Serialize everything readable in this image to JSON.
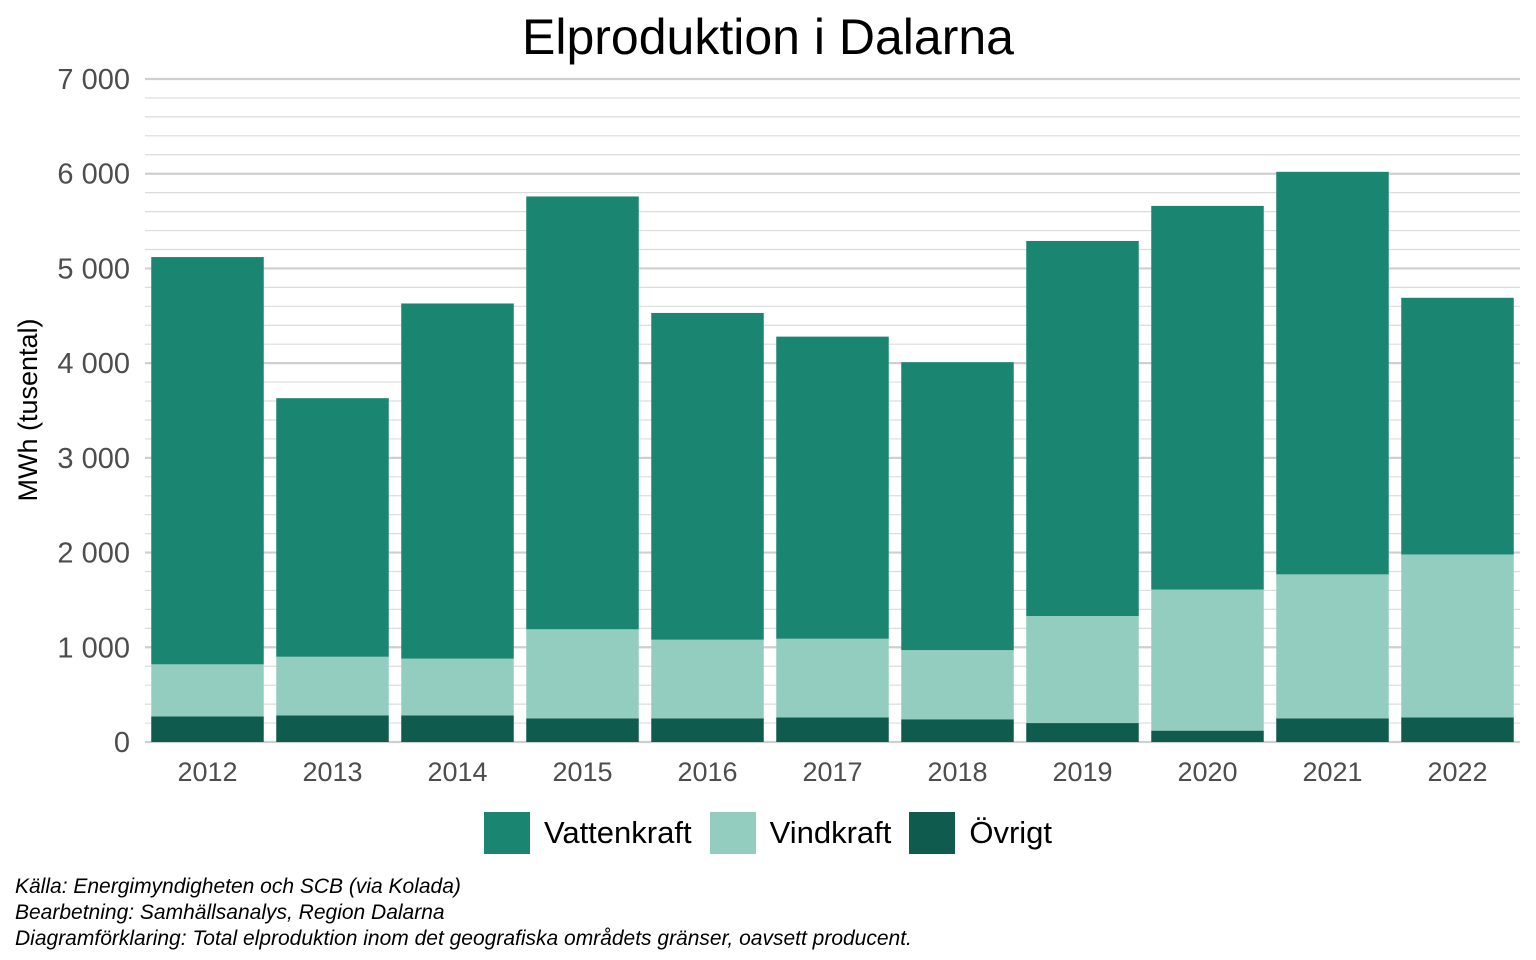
{
  "chart_data": {
    "type": "bar",
    "stacked": true,
    "title": "Elproduktion i Dalarna",
    "xlabel": "",
    "ylabel": "MWh (tusental)",
    "ylim": [
      0,
      7000
    ],
    "yticks": [
      0,
      1000,
      2000,
      3000,
      4000,
      5000,
      6000,
      7000
    ],
    "ytick_labels": [
      "0",
      "1 000",
      "2 000",
      "3 000",
      "4 000",
      "5 000",
      "6 000",
      "7 000"
    ],
    "grid": true,
    "legend_position": "bottom",
    "categories": [
      "2012",
      "2013",
      "2014",
      "2015",
      "2016",
      "2017",
      "2018",
      "2019",
      "2020",
      "2021",
      "2022"
    ],
    "series": [
      {
        "name": "Övrigt",
        "color": "#0f5c4e",
        "values": [
          270,
          280,
          280,
          250,
          250,
          260,
          240,
          200,
          120,
          250,
          260
        ]
      },
      {
        "name": "Vindkraft",
        "color": "#93cdbf",
        "values": [
          550,
          620,
          600,
          940,
          830,
          830,
          730,
          1130,
          1490,
          1520,
          1720
        ]
      },
      {
        "name": "Vattenkraft",
        "color": "#1a8672",
        "values": [
          4300,
          2730,
          3750,
          4570,
          3450,
          3190,
          3040,
          3960,
          4050,
          4250,
          2710
        ]
      }
    ],
    "legend_order": [
      "Vattenkraft",
      "Vindkraft",
      "Övrigt"
    ]
  },
  "caption": {
    "source": "Källa: Energimyndigheten och SCB (via Kolada)",
    "processing": "Bearbetning: Samhällsanalys, Region Dalarna",
    "explanation": "Diagramförklaring: Total elproduktion inom det geografiska områdets gränser, oavsett producent."
  }
}
